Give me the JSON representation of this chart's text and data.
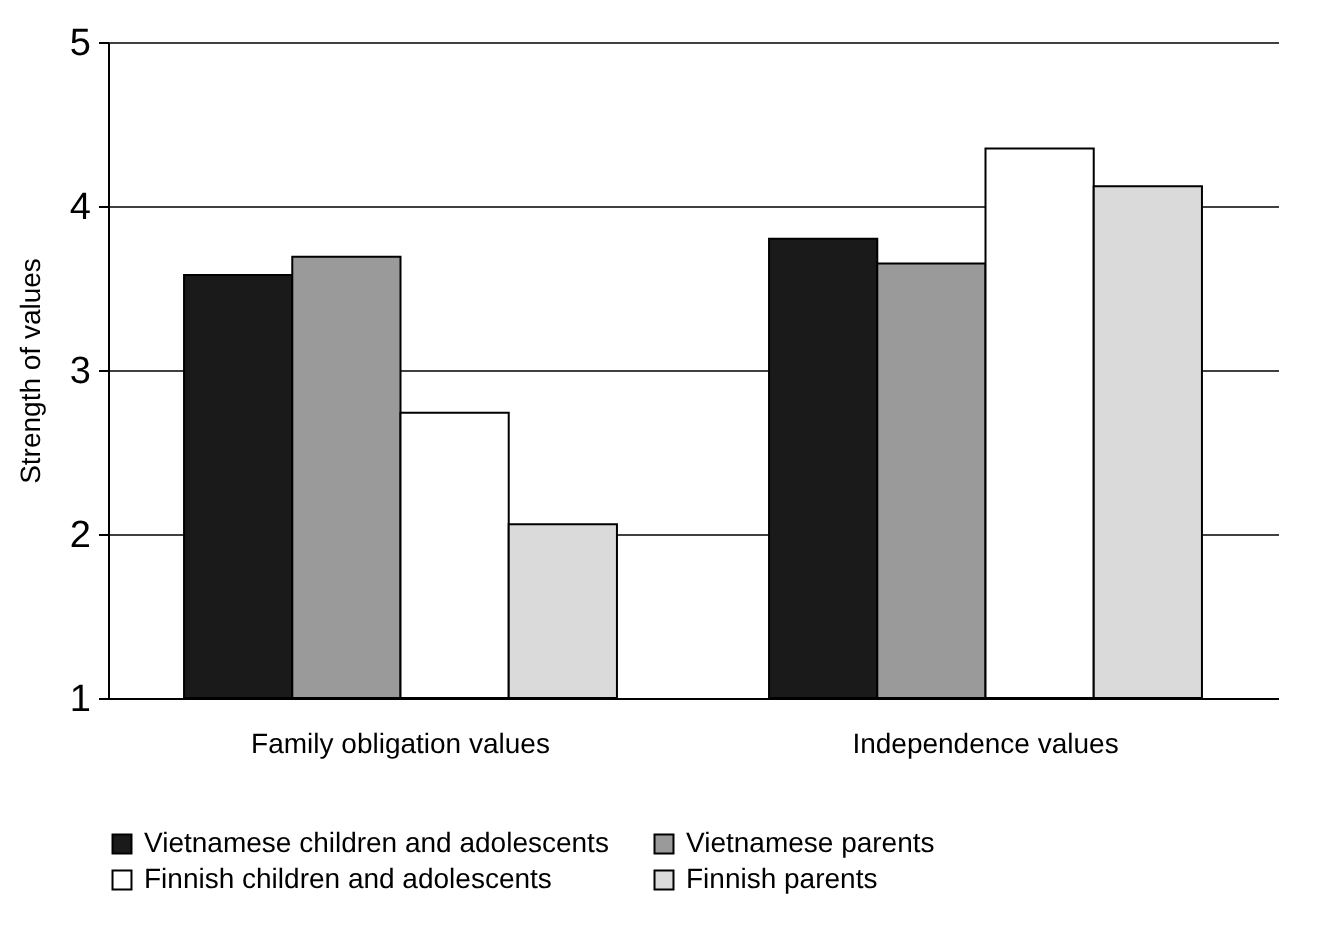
{
  "chart_data": {
    "type": "bar",
    "ylabel": "Strength of values",
    "categories": [
      "Family obligation values",
      "Independence values"
    ],
    "series": [
      {
        "name": "Vietnamese children and adolescents",
        "color": "#1a1a1a",
        "values": [
          3.58,
          3.8
        ]
      },
      {
        "name": "Vietnamese parents",
        "color": "#9a9a9a",
        "values": [
          3.69,
          3.65
        ]
      },
      {
        "name": "Finnish children and adolescents",
        "color": "#ffffff",
        "values": [
          2.74,
          4.35
        ]
      },
      {
        "name": "Finnish parents",
        "color": "#dadada",
        "values": [
          2.06,
          4.12
        ]
      }
    ],
    "ylim": [
      1,
      5
    ],
    "yticks": [
      1,
      2,
      3,
      4,
      5
    ],
    "grid": "y",
    "legend": "bottom"
  }
}
